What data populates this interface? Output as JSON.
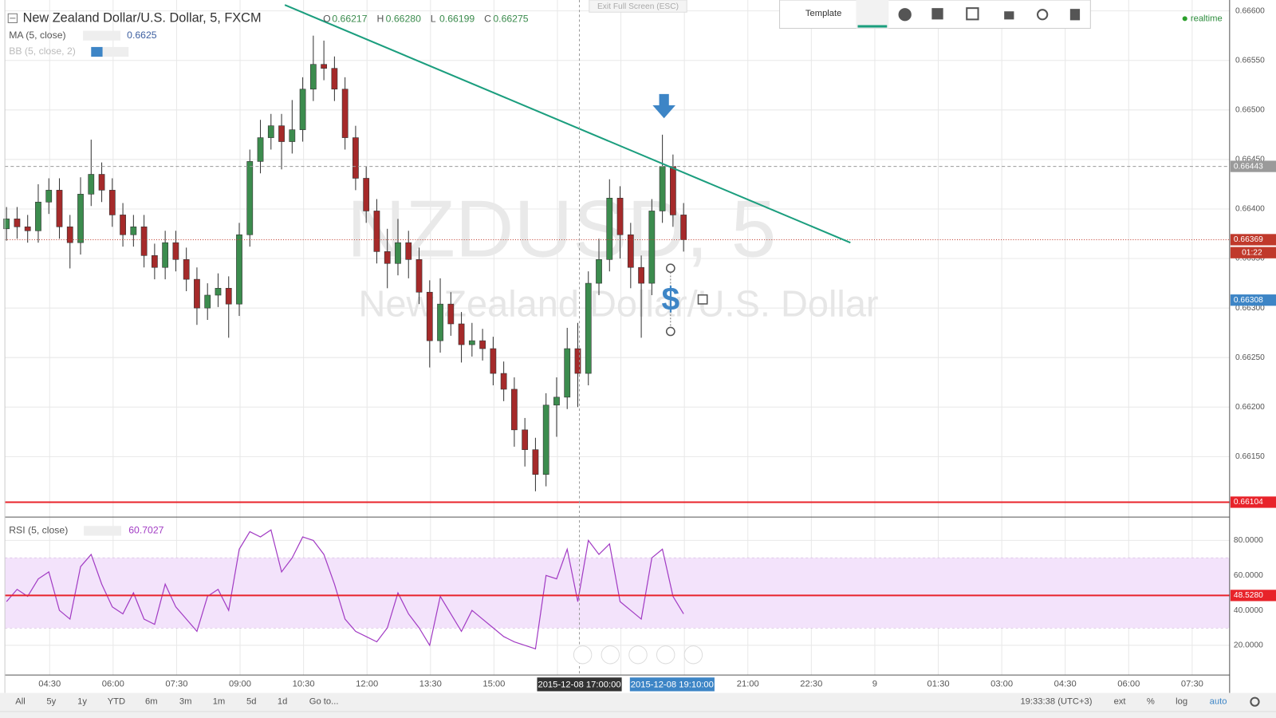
{
  "chart_data": {
    "type": "candlestick",
    "title": "New Zealand Dollar/U.S. Dollar, 5, FXCM",
    "legend_ohlc": [
      {
        "name": "O",
        "value": 0.66217
      },
      {
        "name": "H",
        "value": 0.6628,
        "label": "0.66280"
      },
      {
        "name": "L",
        "value": 0.66199
      },
      {
        "name": "C",
        "value": 0.66275
      }
    ],
    "watermark": "NZDUSD, 5",
    "watermark_subtitle": "New Zealand Dollar/U.S. Dollar",
    "indicators": [
      {
        "name": "MA (5, close)",
        "value": 0.6625
      },
      {
        "name": "BB (5, close, 2)"
      }
    ],
    "open": [
      0.6638,
      0.6639,
      0.66382,
      0.66378,
      0.66407,
      0.66419,
      0.66382,
      0.66366,
      0.66415,
      0.66435,
      0.66419,
      0.66394,
      0.66374,
      0.66382,
      0.66353,
      0.66341,
      0.66366,
      0.66349,
      0.66329,
      0.663,
      0.66313,
      0.6632,
      0.66304,
      0.66374,
      0.66448,
      0.66472,
      0.66484,
      0.66468,
      0.6648,
      0.66521,
      0.66546,
      0.66542,
      0.66521,
      0.66472,
      0.66431,
      0.66398,
      0.66357,
      0.66345,
      0.66366,
      0.66349,
      0.66316,
      0.66267,
      0.66304,
      0.66284,
      0.66263,
      0.66267,
      0.66259,
      0.66234,
      0.66218,
      0.66177,
      0.66157,
      0.66132,
      0.66202,
      0.6621,
      0.66259,
      0.66234,
      0.66325,
      0.66349,
      0.66411,
      0.66374,
      0.66341,
      0.66325,
      0.66398,
      0.66443,
      0.66394
    ],
    "high": [
      0.66402,
      0.66402,
      0.66394,
      0.66425,
      0.66431,
      0.66431,
      0.66394,
      0.66432,
      0.6647,
      0.66447,
      0.66431,
      0.66406,
      0.66394,
      0.66394,
      0.66365,
      0.66378,
      0.66378,
      0.66361,
      0.66341,
      0.66325,
      0.66335,
      0.66332,
      0.66386,
      0.6646,
      0.6649,
      0.66496,
      0.66496,
      0.6651,
      0.66533,
      0.66575,
      0.6657,
      0.66554,
      0.66533,
      0.66484,
      0.66443,
      0.6641,
      0.6638,
      0.6639,
      0.66378,
      0.66361,
      0.66328,
      0.6633,
      0.66316,
      0.66296,
      0.66285,
      0.66279,
      0.66271,
      0.66246,
      0.6623,
      0.66189,
      0.66169,
      0.66214,
      0.6623,
      0.6628,
      0.66285,
      0.66337,
      0.6637,
      0.6643,
      0.66423,
      0.66386,
      0.66353,
      0.6641,
      0.66475,
      0.66455,
      0.66406
    ],
    "low": [
      0.66368,
      0.6637,
      0.66366,
      0.66366,
      0.66395,
      0.6637,
      0.6634,
      0.66354,
      0.66403,
      0.66407,
      0.66382,
      0.66362,
      0.66362,
      0.66341,
      0.66329,
      0.66329,
      0.66337,
      0.66317,
      0.66283,
      0.66288,
      0.66301,
      0.6627,
      0.66292,
      0.66362,
      0.66436,
      0.6646,
      0.6644,
      0.66456,
      0.66468,
      0.66509,
      0.6653,
      0.66509,
      0.6646,
      0.66419,
      0.66386,
      0.66345,
      0.6632,
      0.66333,
      0.6633,
      0.66304,
      0.6624,
      0.66255,
      0.66272,
      0.66245,
      0.66251,
      0.66247,
      0.66222,
      0.66206,
      0.6616,
      0.6614,
      0.66115,
      0.6612,
      0.6617,
      0.66198,
      0.662,
      0.66222,
      0.66313,
      0.66337,
      0.6635,
      0.6632,
      0.6627,
      0.66313,
      0.66386,
      0.66382,
      0.66357
    ],
    "close": [
      0.6639,
      0.66382,
      0.66378,
      0.66407,
      0.66419,
      0.66382,
      0.66366,
      0.66415,
      0.66435,
      0.66419,
      0.66394,
      0.66374,
      0.66382,
      0.66353,
      0.66341,
      0.66366,
      0.66349,
      0.66329,
      0.663,
      0.66313,
      0.6632,
      0.66304,
      0.66374,
      0.66448,
      0.66472,
      0.66484,
      0.66468,
      0.6648,
      0.66521,
      0.66546,
      0.66542,
      0.66521,
      0.66472,
      0.66431,
      0.66398,
      0.66357,
      0.66345,
      0.66366,
      0.66349,
      0.66316,
      0.66267,
      0.66304,
      0.66284,
      0.66263,
      0.66267,
      0.66259,
      0.66234,
      0.66218,
      0.66177,
      0.66157,
      0.66132,
      0.66202,
      0.6621,
      0.66259,
      0.66234,
      0.66325,
      0.66349,
      0.66411,
      0.66374,
      0.66341,
      0.66325,
      0.66398,
      0.66443,
      0.66394,
      0.66369
    ],
    "up_color": "#3c8c4e",
    "down_color": "#a52a2a",
    "ylim": [
      0.66089,
      0.66611
    ],
    "yticks": [
      {
        "value": 0.6615,
        "label": "0.66150"
      },
      {
        "value": 0.662,
        "label": "0.66200"
      },
      {
        "value": 0.6625,
        "label": "0.66250"
      },
      {
        "value": 0.663,
        "label": "0.66300"
      },
      {
        "value": 0.6635,
        "label": "0.66350"
      },
      {
        "value": 0.664,
        "label": "0.66400"
      },
      {
        "value": 0.6645,
        "label": "0.66450"
      },
      {
        "value": 0.665,
        "label": "0.66500"
      },
      {
        "value": 0.6655,
        "label": "0.66550"
      },
      {
        "value": 0.666,
        "label": "0.66600"
      }
    ],
    "xticks": [
      "04:30",
      "06:00",
      "07:30",
      "09:00",
      "10:30",
      "12:00",
      "13:30",
      "15:00",
      null,
      null,
      null,
      "21:00",
      "22:30",
      "9",
      "01:30",
      "03:00",
      "04:30",
      "06:00",
      "07:30"
    ],
    "grid": true,
    "crosshair_labels": [
      "2015-12-08 17:00:00",
      "2015-12-08 19:10:00"
    ],
    "price_lines": [
      {
        "value": 0.66443,
        "color": "#9a9a9a",
        "style": "dashed"
      },
      {
        "value": 0.66369,
        "color": "#c0392b",
        "style": "dotted",
        "countdown": "01:22"
      },
      {
        "value": 0.66308,
        "color": "#3d85c6",
        "style": "none"
      },
      {
        "value": 0.66104,
        "color": "#e8232a",
        "style": "solid"
      }
    ],
    "trendline": {
      "color": "#1b9e7e",
      "values": [
        0.66606,
        0.66366
      ]
    },
    "rsi": {
      "name": "RSI (5, close)",
      "value": 60.7027,
      "color": "#a23cc4",
      "values": [
        45,
        52,
        48,
        58,
        62,
        40,
        35,
        65,
        72,
        55,
        42,
        38,
        50,
        35,
        32,
        55,
        42,
        35,
        28,
        48,
        52,
        40,
        75,
        85,
        82,
        86,
        62,
        70,
        82,
        80,
        72,
        55,
        35,
        28,
        25,
        22,
        30,
        50,
        38,
        30,
        20,
        48,
        38,
        28,
        40,
        35,
        30,
        25,
        22,
        20,
        18,
        60,
        58,
        75,
        45,
        80,
        72,
        78,
        45,
        40,
        35,
        70,
        75,
        48,
        38
      ],
      "ylim": [
        3,
        92
      ],
      "yticks": [
        {
          "value": 20,
          "label": "20.0000"
        },
        {
          "value": 40,
          "label": "40.0000"
        },
        {
          "value": 60,
          "label": "60.0000"
        },
        {
          "value": 80,
          "label": "80.0000"
        }
      ],
      "band": [
        30,
        70
      ],
      "band_color": "#f3e3fb",
      "line": {
        "value": 48.528,
        "label": "48.5280",
        "color": "#e8232a"
      }
    }
  },
  "ui": {
    "exit_fullscreen": "Exit Full Screen (ESC)",
    "template": "Template",
    "realtime": "realtime",
    "ranges": [
      "All",
      "5y",
      "1y",
      "YTD",
      "6m",
      "3m",
      "1m",
      "5d",
      "1d",
      "Go to..."
    ],
    "clock": "19:33:38 (UTC+3)",
    "options": [
      "ext",
      "%",
      "log",
      "auto"
    ]
  }
}
